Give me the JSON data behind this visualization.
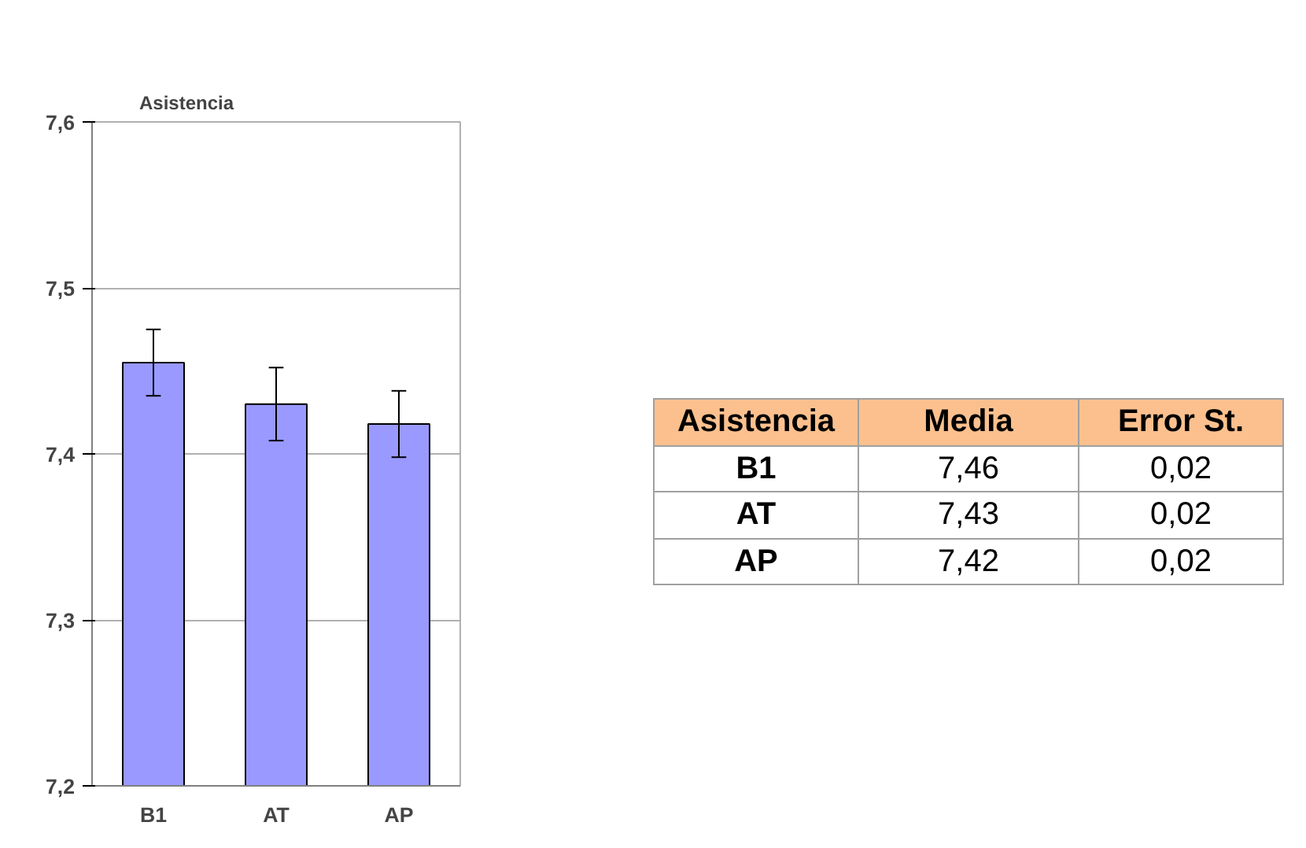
{
  "chart_data": {
    "type": "bar",
    "title": "Asistencia",
    "categories": [
      "B1",
      "AT",
      "AP"
    ],
    "values": [
      7.455,
      7.43,
      7.418
    ],
    "errors": [
      0.02,
      0.022,
      0.02
    ],
    "color": "#9999ff",
    "ylim": [
      7.2,
      7.6
    ],
    "yticks": [
      {
        "value": 7.2,
        "label": "7,2"
      },
      {
        "value": 7.3,
        "label": "7,3"
      },
      {
        "value": 7.4,
        "label": "7,4"
      },
      {
        "value": 7.5,
        "label": "7,5"
      },
      {
        "value": 7.6,
        "label": "7,6"
      }
    ],
    "grid": "y",
    "annotations": [
      "Asistencia",
      "Media",
      "Error St.",
      "7,46",
      "7,43",
      "7,42",
      "0,02",
      "0,02",
      "0,02"
    ]
  }
}
